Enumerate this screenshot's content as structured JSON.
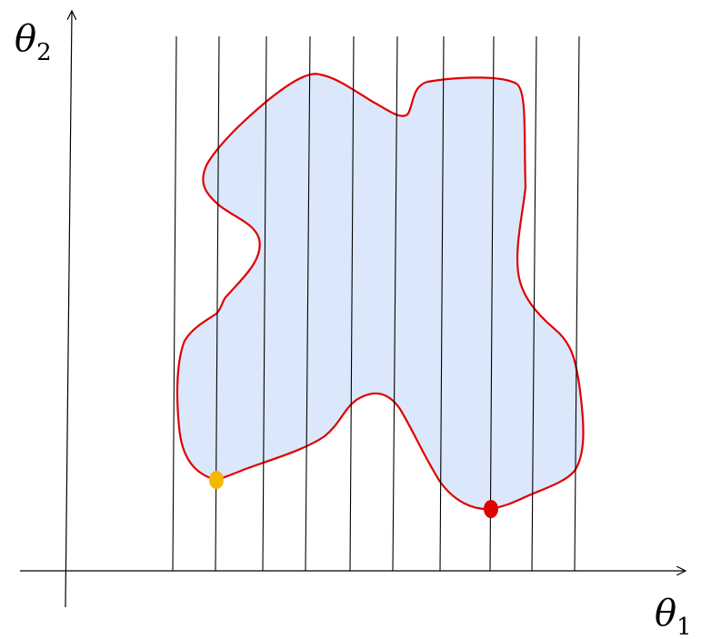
{
  "axes": {
    "horizontal_label": "θ",
    "horizontal_subscript": "1",
    "vertical_label": "θ",
    "vertical_subscript": "2"
  },
  "colors": {
    "region_fill": "#dbe8fb",
    "region_stroke": "#e00000",
    "lines": "#000000",
    "marker_left": "#f5b800",
    "marker_right": "#e00000"
  },
  "vertical_line_count": 10,
  "markers": [
    {
      "name": "left-point",
      "color": "yellow"
    },
    {
      "name": "right-point",
      "color": "red"
    }
  ]
}
